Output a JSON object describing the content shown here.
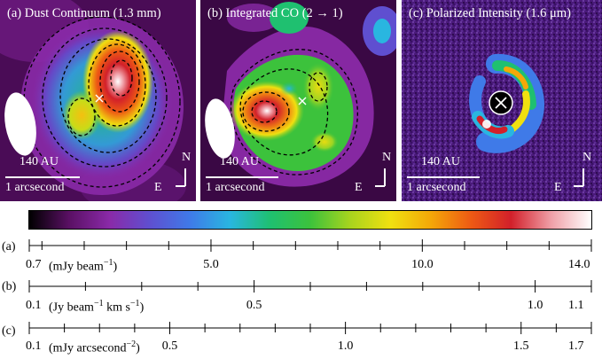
{
  "panels": [
    {
      "label": "(a) Dust Continuum (1.3 mm)",
      "scale_bar": "140 AU",
      "arcsec": "1 arcsecond",
      "north": "N",
      "east": "E"
    },
    {
      "label": "(b)  Integrated CO (2 → 1)",
      "scale_bar": "140 AU",
      "arcsec": "1 arcsecond",
      "north": "N",
      "east": "E"
    },
    {
      "label": "(c) Polarized Intensity (1.6 μm)",
      "scale_bar": "140 AU",
      "arcsec": "1 arcsecond",
      "north": "N",
      "east": "E"
    }
  ],
  "colorbar": {
    "colors": [
      "#000000",
      "#5a1064",
      "#8a2aa8",
      "#5f4fd0",
      "#3f7ae8",
      "#29b6e0",
      "#1fc070",
      "#3cc23c",
      "#a8d41e",
      "#f0e010",
      "#f4a808",
      "#ee5a14",
      "#d2202a",
      "#f0a0a8",
      "#ffffff"
    ]
  },
  "scales": [
    {
      "row": "(a)",
      "unit_main": "(mJy beam",
      "unit_sup": "−1",
      "unit_tail": ")",
      "min": 0.7,
      "max": 14.0,
      "major": [
        0.7,
        5.0,
        10.0,
        14.0
      ],
      "major_labels": [
        "0.7",
        "5.0",
        "10.0",
        "14.0"
      ],
      "minor": [
        1.0,
        2.0,
        3.0,
        4.0,
        6.0,
        7.0,
        8.0,
        9.0,
        11.0,
        12.0,
        13.0
      ]
    },
    {
      "row": "(b)",
      "unit_main": "(Jy beam",
      "unit_sup": "−1",
      "unit_tail": " km s",
      "unit_sup2": "−1",
      "unit_tail2": ")",
      "min": 0.1,
      "max": 1.1,
      "major": [
        0.1,
        0.5,
        1.0,
        1.1
      ],
      "major_labels": [
        "0.1",
        "0.5",
        "1.0",
        "1.1"
      ],
      "minor": [
        0.2,
        0.3,
        0.4,
        0.6,
        0.7,
        0.8,
        0.9
      ]
    },
    {
      "row": "(c)",
      "unit_main": "(mJy arcsecond",
      "unit_sup": "−2",
      "unit_tail": ")",
      "min": 0.1,
      "max": 1.7,
      "major": [
        0.1,
        0.5,
        1.0,
        1.5,
        1.7
      ],
      "major_labels": [
        "0.1",
        "0.5",
        "1.0",
        "1.5",
        "1.7"
      ],
      "minor": [
        0.2,
        0.3,
        0.4,
        0.6,
        0.7,
        0.8,
        0.9,
        1.1,
        1.2,
        1.3,
        1.4,
        1.6
      ]
    }
  ]
}
